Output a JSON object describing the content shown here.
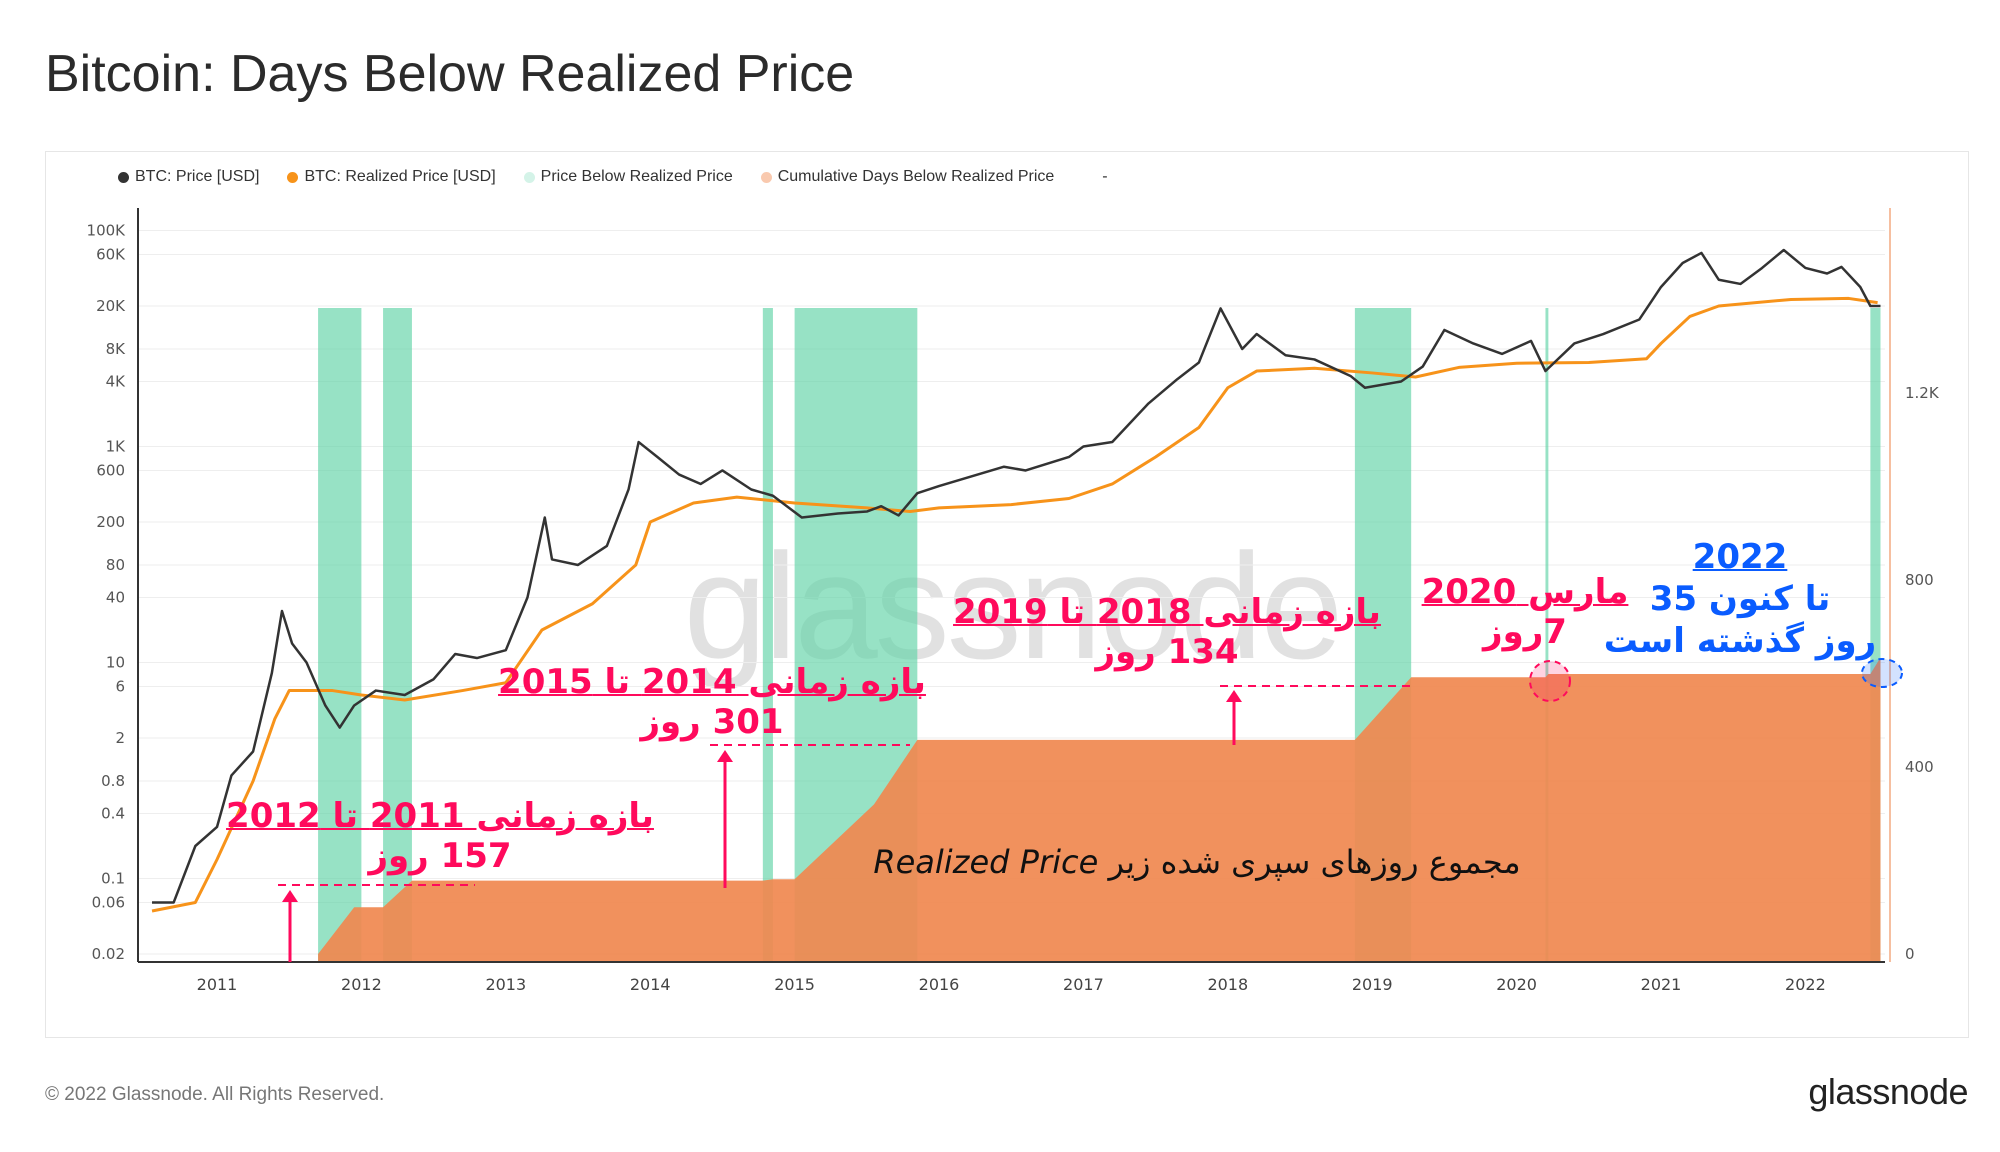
{
  "title": "Bitcoin: Days Below Realized Price",
  "footer": {
    "copyright": "© 2022 Glassnode. All Rights Reserved.",
    "logo": "glassnode"
  },
  "watermark": "glassnode",
  "legend": [
    {
      "label": "BTC: Price [USD]",
      "color": "#333333"
    },
    {
      "label": "BTC: Realized Price [USD]",
      "color": "#f7931a"
    },
    {
      "label": "Price Below Realized Price",
      "color": "#d4f3e8"
    },
    {
      "label": "Cumulative Days Below Realized Price",
      "color": "#f9c9ae"
    },
    {
      "label": "-",
      "color": ""
    }
  ],
  "annotations": {
    "a1": {
      "line1": "بازه زمانی 2011 تا 2012",
      "line2": "157 روز"
    },
    "a2": {
      "line1": "بازه زمانی 2014 تا 2015",
      "line2": "301 روز"
    },
    "a3": {
      "line1": "بازه زمانی 2018 تا 2019",
      "line2": "134 روز"
    },
    "a4": {
      "line1": "مارس 2020",
      "line2": "7روز"
    },
    "a5": {
      "line1": "2022",
      "line2": "تا کنون 35",
      "line3": "روز گذشته است"
    },
    "bottom_prefix": "مجموع روزهای سپری شده زیر",
    "bottom_term": "Realized Price"
  },
  "chart_data": {
    "type": "line",
    "title": "Bitcoin: Days Below Realized Price",
    "x_ticks": [
      "2011",
      "2012",
      "2013",
      "2014",
      "2015",
      "2016",
      "2017",
      "2018",
      "2019",
      "2020",
      "2021",
      "2022"
    ],
    "y_left": {
      "scale": "log",
      "range": [
        0.02,
        100000
      ],
      "ticks": [
        "100K",
        "60K",
        "20K",
        "8K",
        "4K",
        "1K",
        "600",
        "200",
        "80",
        "40",
        "10",
        "6",
        "2",
        "0.8",
        "0.4",
        "0.1",
        "0.06",
        "0.02"
      ]
    },
    "y_right": {
      "scale": "linear",
      "range": [
        0,
        1500
      ],
      "ticks": [
        "1.2K",
        "800",
        "400",
        "0"
      ]
    },
    "grid": true,
    "legend_position": "top-left",
    "series": [
      {
        "name": "BTC: Price [USD]",
        "axis": "left",
        "color": "#333333",
        "points": [
          [
            2010.55,
            0.06
          ],
          [
            2010.7,
            0.06
          ],
          [
            2010.85,
            0.2
          ],
          [
            2011.0,
            0.3
          ],
          [
            2011.1,
            0.9
          ],
          [
            2011.25,
            1.5
          ],
          [
            2011.38,
            8
          ],
          [
            2011.45,
            30
          ],
          [
            2011.52,
            15
          ],
          [
            2011.62,
            10
          ],
          [
            2011.75,
            4
          ],
          [
            2011.85,
            2.5
          ],
          [
            2011.95,
            4
          ],
          [
            2012.1,
            5.5
          ],
          [
            2012.3,
            5
          ],
          [
            2012.5,
            7
          ],
          [
            2012.65,
            12
          ],
          [
            2012.8,
            11
          ],
          [
            2013.0,
            13
          ],
          [
            2013.15,
            40
          ],
          [
            2013.27,
            220
          ],
          [
            2013.32,
            90
          ],
          [
            2013.5,
            80
          ],
          [
            2013.7,
            120
          ],
          [
            2013.85,
            400
          ],
          [
            2013.92,
            1100
          ],
          [
            2014.05,
            800
          ],
          [
            2014.2,
            550
          ],
          [
            2014.35,
            450
          ],
          [
            2014.5,
            600
          ],
          [
            2014.7,
            400
          ],
          [
            2014.85,
            350
          ],
          [
            2015.05,
            220
          ],
          [
            2015.3,
            240
          ],
          [
            2015.5,
            250
          ],
          [
            2015.6,
            280
          ],
          [
            2015.72,
            230
          ],
          [
            2015.85,
            370
          ],
          [
            2016.0,
            430
          ],
          [
            2016.45,
            650
          ],
          [
            2016.6,
            600
          ],
          [
            2016.9,
            800
          ],
          [
            2017.0,
            1000
          ],
          [
            2017.2,
            1100
          ],
          [
            2017.45,
            2500
          ],
          [
            2017.65,
            4200
          ],
          [
            2017.8,
            6000
          ],
          [
            2017.95,
            19000
          ],
          [
            2018.1,
            8000
          ],
          [
            2018.2,
            11000
          ],
          [
            2018.4,
            7000
          ],
          [
            2018.6,
            6400
          ],
          [
            2018.85,
            4500
          ],
          [
            2018.95,
            3500
          ],
          [
            2019.2,
            4000
          ],
          [
            2019.35,
            5500
          ],
          [
            2019.5,
            12000
          ],
          [
            2019.7,
            9000
          ],
          [
            2019.9,
            7200
          ],
          [
            2020.1,
            9500
          ],
          [
            2020.2,
            5000
          ],
          [
            2020.4,
            9000
          ],
          [
            2020.6,
            11000
          ],
          [
            2020.85,
            15000
          ],
          [
            2021.0,
            30000
          ],
          [
            2021.15,
            50000
          ],
          [
            2021.28,
            62000
          ],
          [
            2021.4,
            35000
          ],
          [
            2021.55,
            32000
          ],
          [
            2021.7,
            45000
          ],
          [
            2021.85,
            66000
          ],
          [
            2022.0,
            45000
          ],
          [
            2022.15,
            40000
          ],
          [
            2022.25,
            46000
          ],
          [
            2022.38,
            30000
          ],
          [
            2022.45,
            20000
          ],
          [
            2022.52,
            20000
          ]
        ]
      },
      {
        "name": "BTC: Realized Price [USD]",
        "axis": "left",
        "color": "#f7931a",
        "points": [
          [
            2010.55,
            0.05
          ],
          [
            2010.85,
            0.06
          ],
          [
            2011.0,
            0.15
          ],
          [
            2011.25,
            0.8
          ],
          [
            2011.4,
            3
          ],
          [
            2011.5,
            5.5
          ],
          [
            2011.8,
            5.5
          ],
          [
            2012.0,
            5
          ],
          [
            2012.3,
            4.5
          ],
          [
            2012.7,
            5.5
          ],
          [
            2013.0,
            6.5
          ],
          [
            2013.25,
            20
          ],
          [
            2013.6,
            35
          ],
          [
            2013.9,
            80
          ],
          [
            2014.0,
            200
          ],
          [
            2014.3,
            300
          ],
          [
            2014.6,
            340
          ],
          [
            2015.0,
            300
          ],
          [
            2015.5,
            270
          ],
          [
            2015.8,
            250
          ],
          [
            2016.0,
            270
          ],
          [
            2016.5,
            290
          ],
          [
            2016.9,
            330
          ],
          [
            2017.2,
            450
          ],
          [
            2017.5,
            800
          ],
          [
            2017.8,
            1500
          ],
          [
            2018.0,
            3500
          ],
          [
            2018.2,
            5000
          ],
          [
            2018.6,
            5300
          ],
          [
            2019.0,
            4800
          ],
          [
            2019.3,
            4400
          ],
          [
            2019.6,
            5400
          ],
          [
            2020.0,
            5900
          ],
          [
            2020.5,
            6000
          ],
          [
            2020.9,
            6500
          ],
          [
            2021.0,
            9000
          ],
          [
            2021.2,
            16000
          ],
          [
            2021.4,
            20000
          ],
          [
            2021.9,
            23000
          ],
          [
            2022.3,
            23500
          ],
          [
            2022.5,
            21500
          ]
        ]
      },
      {
        "name": "Cumulative Days Below Realized Price",
        "axis": "right",
        "color": "#f0884f",
        "points": [
          [
            2011.7,
            0
          ],
          [
            2011.95,
            100
          ],
          [
            2012.15,
            100
          ],
          [
            2012.35,
            157
          ],
          [
            2014.78,
            157
          ],
          [
            2014.85,
            160
          ],
          [
            2015.0,
            160
          ],
          [
            2015.55,
            320
          ],
          [
            2015.85,
            458
          ],
          [
            2018.88,
            458
          ],
          [
            2019.27,
            592
          ],
          [
            2020.2,
            592
          ],
          [
            2020.22,
            599
          ],
          [
            2022.45,
            599
          ],
          [
            2022.52,
            634
          ]
        ]
      }
    ],
    "below_realized_ranges": [
      [
        2011.7,
        2012.0
      ],
      [
        2012.15,
        2012.35
      ],
      [
        2014.78,
        2014.85
      ],
      [
        2015.0,
        2015.85
      ],
      [
        2018.88,
        2019.27
      ],
      [
        2020.2,
        2020.22
      ],
      [
        2022.45,
        2022.52
      ]
    ]
  }
}
